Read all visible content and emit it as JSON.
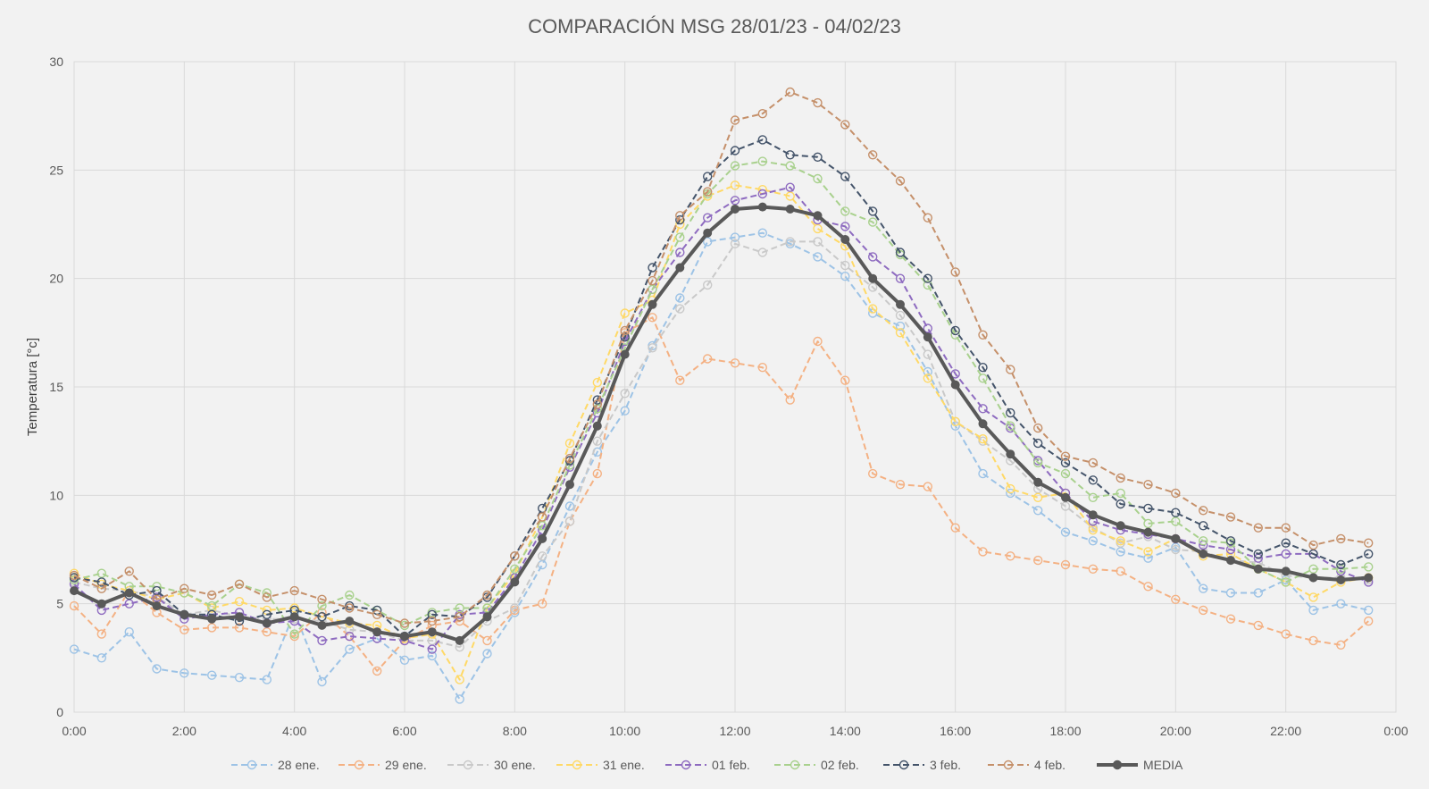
{
  "chart_data": {
    "type": "line",
    "title": "COMPARACIÓN MSG 28/01/23 - 04/02/23",
    "xlabel": "",
    "ylabel": "Temperatura [°c]",
    "ylim": [
      0,
      30
    ],
    "yticks": [
      "0",
      "5",
      "10",
      "15",
      "20",
      "25",
      "30"
    ],
    "xticks": [
      "0:00",
      "2:00",
      "4:00",
      "6:00",
      "8:00",
      "10:00",
      "12:00",
      "14:00",
      "16:00",
      "18:00",
      "20:00",
      "22:00",
      "0:00"
    ],
    "x_hours_range": [
      0,
      24
    ],
    "x_step_hours": 0.5,
    "grid": true,
    "legend_position": "bottom",
    "series": [
      {
        "name": "28 ene.",
        "color": "#9dc3e6",
        "style": "dashed",
        "values": [
          2.9,
          2.5,
          3.7,
          2.0,
          1.8,
          1.7,
          1.6,
          1.5,
          4.6,
          1.4,
          2.9,
          3.4,
          2.4,
          2.6,
          0.6,
          2.7,
          4.6,
          6.8,
          9.5,
          12.0,
          13.9,
          16.9,
          19.1,
          21.7,
          21.9,
          22.1,
          21.6,
          21.0,
          20.1,
          18.4,
          17.8,
          15.7,
          13.2,
          11.0,
          10.1,
          9.3,
          8.3,
          7.9,
          7.4,
          7.1,
          7.6,
          5.7,
          5.5,
          5.5,
          6.1,
          4.7,
          5.0,
          4.7
        ]
      },
      {
        "name": "29 ene.",
        "color": "#f4b183",
        "style": "dashed",
        "values": [
          4.9,
          3.6,
          5.6,
          4.6,
          3.8,
          3.9,
          3.9,
          3.7,
          3.5,
          4.6,
          3.5,
          1.9,
          3.3,
          4.0,
          4.2,
          3.3,
          4.7,
          5.0,
          8.8,
          11.0,
          17.5,
          18.2,
          15.3,
          16.3,
          16.1,
          15.9,
          14.4,
          17.1,
          15.3,
          11.0,
          10.5,
          10.4,
          8.5,
          7.4,
          7.2,
          7.0,
          6.8,
          6.6,
          6.5,
          5.8,
          5.2,
          4.7,
          4.3,
          4.0,
          3.6,
          3.3,
          3.1,
          4.2
        ]
      },
      {
        "name": "30 ene.",
        "color": "#c9c9c9",
        "style": "dashed",
        "values": [
          6.0,
          5.7,
          5.6,
          5.3,
          4.5,
          4.7,
          4.4,
          4.3,
          4.3,
          4.2,
          3.8,
          3.7,
          3.3,
          3.3,
          3.0,
          4.2,
          4.8,
          7.2,
          8.8,
          12.5,
          14.7,
          16.8,
          18.6,
          19.7,
          21.6,
          21.2,
          21.7,
          21.7,
          20.6,
          19.6,
          18.3,
          16.5,
          13.4,
          12.5,
          11.6,
          10.3,
          9.5,
          8.5,
          7.8,
          8.1,
          7.5,
          7.4,
          7.0,
          6.9,
          6.3,
          6.2,
          6.2,
          6.1
        ]
      },
      {
        "name": "31 ene.",
        "color": "#ffd966",
        "style": "dashed",
        "values": [
          6.4,
          5.9,
          5.6,
          5.2,
          5.5,
          4.8,
          5.1,
          4.7,
          4.8,
          4.4,
          4.1,
          4.0,
          3.4,
          3.6,
          1.5,
          4.8,
          6.4,
          9.0,
          12.4,
          15.2,
          18.4,
          19.0,
          22.5,
          23.8,
          24.3,
          24.1,
          23.8,
          22.3,
          21.5,
          18.6,
          17.5,
          15.4,
          13.4,
          12.6,
          10.3,
          9.9,
          10.1,
          8.4,
          7.9,
          7.4,
          8.0,
          7.2,
          7.3,
          6.6,
          6.0,
          5.3,
          6.0,
          6.2
        ]
      },
      {
        "name": "01 feb.",
        "color": "#8e6bc0",
        "style": "dashed",
        "values": [
          5.9,
          4.7,
          5.0,
          5.3,
          4.3,
          4.5,
          4.6,
          4.1,
          4.2,
          3.3,
          3.5,
          3.4,
          3.3,
          2.9,
          4.5,
          4.6,
          6.2,
          8.4,
          11.3,
          13.8,
          17.1,
          19.5,
          21.2,
          22.8,
          23.6,
          23.9,
          24.2,
          22.7,
          22.4,
          21.0,
          20.0,
          17.7,
          15.6,
          14.0,
          13.1,
          11.6,
          10.1,
          8.8,
          8.4,
          8.2,
          8.0,
          7.7,
          7.5,
          7.1,
          7.3,
          7.3,
          6.5,
          6.0
        ]
      },
      {
        "name": "02 feb.",
        "color": "#a9d18e",
        "style": "dashed",
        "values": [
          6.1,
          6.4,
          5.8,
          5.8,
          5.5,
          4.9,
          5.9,
          5.5,
          3.6,
          4.9,
          5.4,
          4.7,
          4.0,
          4.6,
          4.8,
          4.8,
          6.6,
          8.6,
          11.4,
          14.0,
          16.8,
          19.5,
          21.9,
          23.9,
          25.2,
          25.4,
          25.2,
          24.6,
          23.1,
          22.6,
          21.1,
          19.7,
          17.4,
          15.4,
          13.2,
          11.5,
          11.0,
          9.9,
          10.1,
          8.7,
          8.8,
          7.9,
          7.8,
          6.6,
          6.0,
          6.6,
          6.6,
          6.7
        ]
      },
      {
        "name": "3 feb.",
        "color": "#44546a",
        "style": "dashed",
        "values": [
          6.2,
          6.0,
          5.4,
          5.6,
          4.5,
          4.5,
          4.2,
          4.5,
          4.7,
          4.4,
          4.9,
          4.7,
          3.5,
          4.5,
          4.4,
          5.3,
          7.2,
          9.4,
          11.6,
          14.4,
          17.3,
          20.5,
          22.7,
          24.7,
          25.9,
          26.4,
          25.7,
          25.6,
          24.7,
          23.1,
          21.2,
          20.0,
          17.6,
          15.9,
          13.8,
          12.4,
          11.5,
          10.7,
          9.6,
          9.4,
          9.2,
          8.6,
          7.9,
          7.3,
          7.8,
          7.3,
          6.8,
          7.3
        ]
      },
      {
        "name": "4 feb.",
        "color": "#c5906a",
        "style": "dashed",
        "values": [
          6.3,
          5.7,
          6.5,
          5.2,
          5.7,
          5.4,
          5.9,
          5.3,
          5.6,
          5.2,
          4.8,
          4.5,
          4.1,
          4.2,
          4.4,
          5.4,
          7.2,
          9.0,
          11.7,
          14.2,
          17.6,
          19.9,
          22.9,
          24.0,
          27.3,
          27.6,
          28.6,
          28.1,
          27.1,
          25.7,
          24.5,
          22.8,
          20.3,
          17.4,
          15.8,
          13.1,
          11.8,
          11.5,
          10.8,
          10.5,
          10.1,
          9.3,
          9.0,
          8.5,
          8.5,
          7.7,
          8.0,
          7.8
        ]
      },
      {
        "name": "MEDIA",
        "color": "#595959",
        "style": "solid",
        "values": [
          5.6,
          5.0,
          5.5,
          4.9,
          4.5,
          4.3,
          4.4,
          4.1,
          4.4,
          4.0,
          4.2,
          3.7,
          3.5,
          3.7,
          3.3,
          4.4,
          6.0,
          8.0,
          10.5,
          13.2,
          16.5,
          18.8,
          20.5,
          22.1,
          23.2,
          23.3,
          23.2,
          22.9,
          21.8,
          20.0,
          18.8,
          17.3,
          15.1,
          13.3,
          11.9,
          10.6,
          9.9,
          9.1,
          8.6,
          8.3,
          8.0,
          7.3,
          7.0,
          6.6,
          6.5,
          6.2,
          6.1,
          6.2
        ]
      }
    ]
  }
}
